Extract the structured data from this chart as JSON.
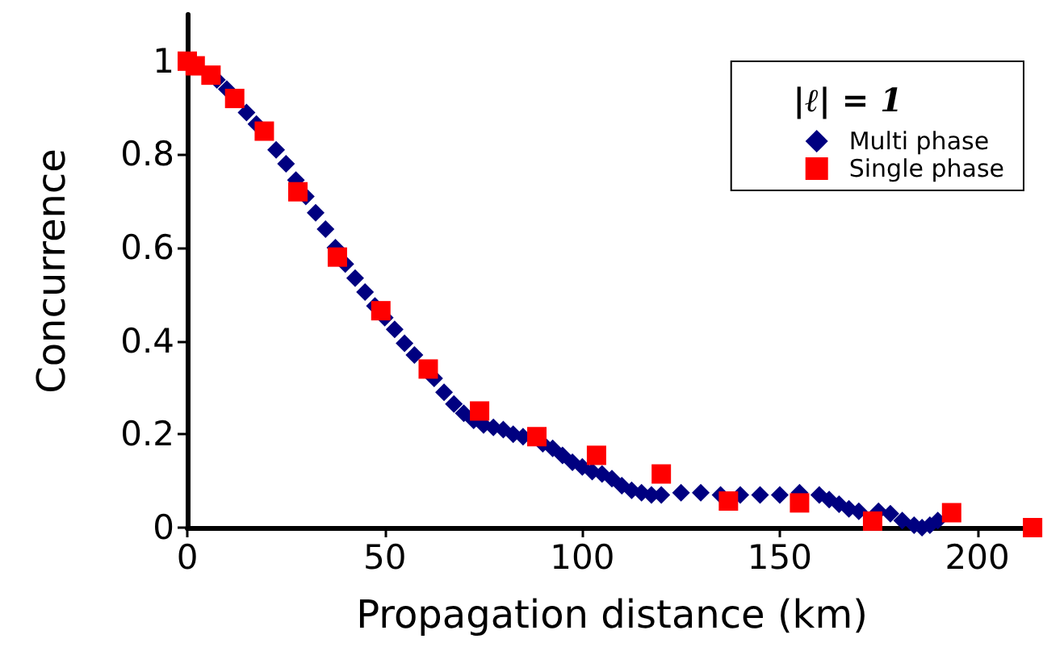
{
  "chart_data": {
    "type": "scatter",
    "xlabel": "Propagation distance (km)",
    "ylabel": "Concurrence",
    "legend_title": "|ℓ| = 1",
    "xlim": [
      0,
      215
    ],
    "xticks": [
      0,
      50,
      100,
      150,
      200
    ],
    "ylim": [
      0,
      1.1
    ],
    "yticks": [
      0,
      0.2,
      0.4,
      0.6,
      0.8,
      1
    ],
    "grid": false,
    "legend": "top right",
    "series": [
      {
        "name": "Multi phase",
        "color": "#000080",
        "marker": "diamond",
        "x": [
          7.5,
          10,
          15,
          17.5,
          22.5,
          25,
          27.5,
          30,
          32.5,
          35,
          37.5,
          40,
          42.5,
          45,
          47.5,
          50,
          52.5,
          55,
          57.5,
          62.5,
          65,
          67.5,
          70,
          72.5,
          75,
          77.5,
          80,
          82.5,
          85,
          90,
          92.5,
          95,
          97.5,
          100,
          102.5,
          105,
          107.5,
          110,
          112.5,
          115,
          117.5,
          120,
          125,
          130,
          135,
          140,
          145,
          150,
          155,
          160,
          162.5,
          165,
          167.5,
          170,
          175,
          178,
          181,
          184,
          186,
          188,
          190
        ],
        "values": [
          0.96,
          0.94,
          0.89,
          0.865,
          0.81,
          0.78,
          0.745,
          0.71,
          0.675,
          0.64,
          0.6,
          0.565,
          0.535,
          0.505,
          0.475,
          0.45,
          0.425,
          0.395,
          0.37,
          0.32,
          0.29,
          0.265,
          0.245,
          0.23,
          0.22,
          0.215,
          0.21,
          0.2,
          0.195,
          0.18,
          0.17,
          0.155,
          0.14,
          0.13,
          0.12,
          0.115,
          0.105,
          0.09,
          0.08,
          0.075,
          0.07,
          0.07,
          0.075,
          0.075,
          0.07,
          0.07,
          0.07,
          0.07,
          0.075,
          0.07,
          0.06,
          0.05,
          0.04,
          0.035,
          0.035,
          0.03,
          0.015,
          0.005,
          0,
          0.005,
          0.015
        ]
      },
      {
        "name": "Single phase",
        "color": "#ff0000",
        "marker": "square",
        "x": [
          0,
          2,
          6,
          12,
          19.5,
          28,
          38,
          49,
          61,
          74,
          88.5,
          103.6,
          120,
          137,
          155,
          173.5,
          193.5,
          214
        ],
        "values": [
          1.0,
          0.99,
          0.97,
          0.92,
          0.85,
          0.72,
          0.58,
          0.465,
          0.34,
          0.25,
          0.195,
          0.155,
          0.115,
          0.057,
          0.053,
          0.014,
          0.032,
          0.0
        ]
      }
    ]
  }
}
